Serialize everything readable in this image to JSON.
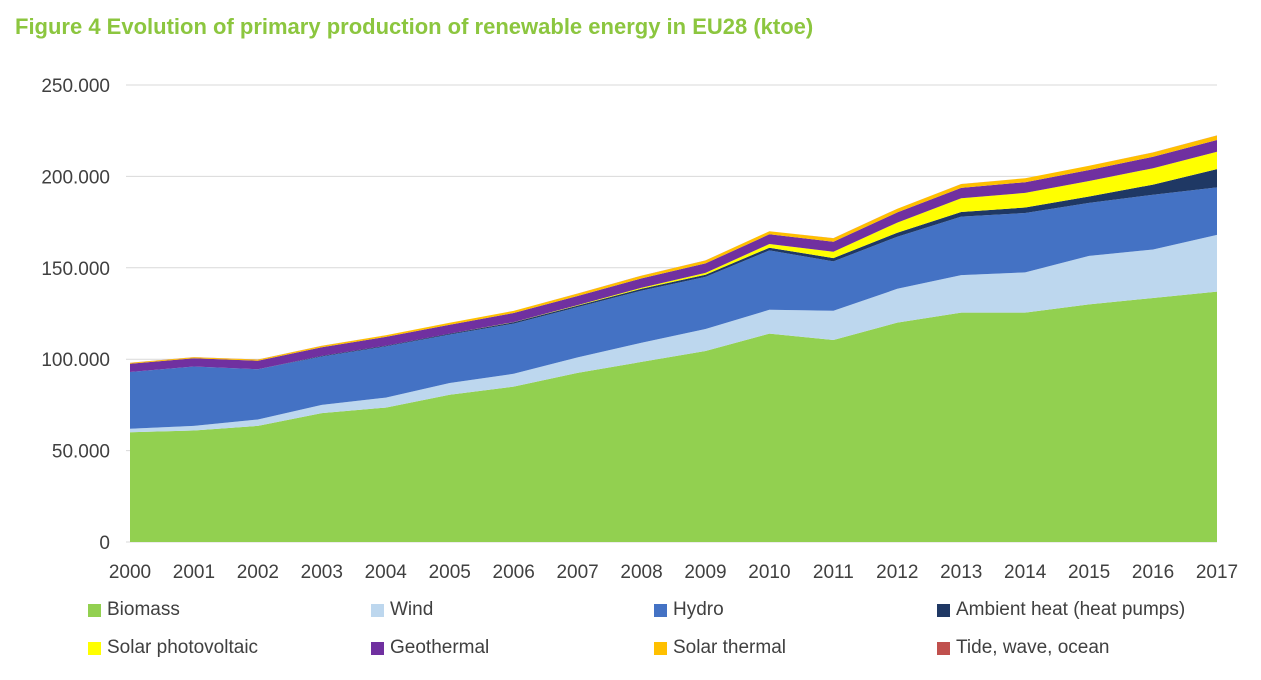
{
  "chart_data": {
    "type": "area",
    "stacked": true,
    "title": "Figure 4 Evolution of primary production of renewable energy in EU28 (ktoe)",
    "xlabel": "",
    "ylabel": "",
    "ylim": [
      0,
      250000
    ],
    "yticks": [
      0,
      50000,
      100000,
      150000,
      200000,
      250000
    ],
    "ytick_labels": [
      "0",
      "50.000",
      "100.000",
      "150.000",
      "200.000",
      "250.000"
    ],
    "grid": true,
    "legend_position": "bottom",
    "categories": [
      "2000",
      "2001",
      "2002",
      "2003",
      "2004",
      "2005",
      "2006",
      "2007",
      "2008",
      "2009",
      "2010",
      "2011",
      "2012",
      "2013",
      "2014",
      "2015",
      "2016",
      "2017"
    ],
    "series": [
      {
        "name": "Biomass",
        "color": "#92d050",
        "values": [
          60000,
          61000,
          63500,
          70500,
          73500,
          80500,
          85000,
          92500,
          98500,
          104500,
          114000,
          110500,
          120000,
          125500,
          125500,
          130000,
          133500,
          137000
        ]
      },
      {
        "name": "Wind",
        "color": "#bdd7ee",
        "values": [
          2000,
          2500,
          3500,
          4500,
          5500,
          6500,
          7000,
          8500,
          10500,
          12000,
          13000,
          16000,
          18500,
          20500,
          22000,
          26500,
          26500,
          31000
        ]
      },
      {
        "name": "Hydro",
        "color": "#4472c4",
        "values": [
          31000,
          32500,
          27500,
          26500,
          28000,
          26500,
          27500,
          27500,
          28500,
          28500,
          32500,
          27000,
          28500,
          32000,
          32500,
          29000,
          30000,
          26000
        ]
      },
      {
        "name": "Ambient heat (heat pumps)",
        "color": "#1f3864",
        "values": [
          0,
          0,
          0,
          300,
          400,
          500,
          700,
          800,
          1000,
          1200,
          1500,
          1800,
          2200,
          2500,
          3000,
          3500,
          5500,
          10000
        ]
      },
      {
        "name": "Solar photovoltaic",
        "color": "#ffff00",
        "values": [
          0,
          0,
          0,
          0,
          0,
          0,
          100,
          300,
          600,
          1000,
          2000,
          3500,
          5500,
          7500,
          8000,
          8500,
          9000,
          9500
        ]
      },
      {
        "name": "Geothermal",
        "color": "#7030a0",
        "values": [
          4500,
          4500,
          4600,
          4700,
          4800,
          4900,
          5000,
          5000,
          5100,
          5200,
          5300,
          5500,
          5600,
          5700,
          5800,
          6000,
          6200,
          6400
        ]
      },
      {
        "name": "Solar thermal",
        "color": "#ffc000",
        "values": [
          500,
          600,
          700,
          800,
          900,
          1000,
          1100,
          1300,
          1500,
          1600,
          1700,
          1900,
          2000,
          2100,
          2200,
          2300,
          2400,
          2500
        ]
      },
      {
        "name": "Tide, wave, ocean",
        "color": "#c0504d",
        "values": [
          40,
          40,
          40,
          40,
          40,
          40,
          40,
          40,
          40,
          40,
          40,
          40,
          40,
          40,
          40,
          40,
          40,
          40
        ]
      }
    ]
  }
}
